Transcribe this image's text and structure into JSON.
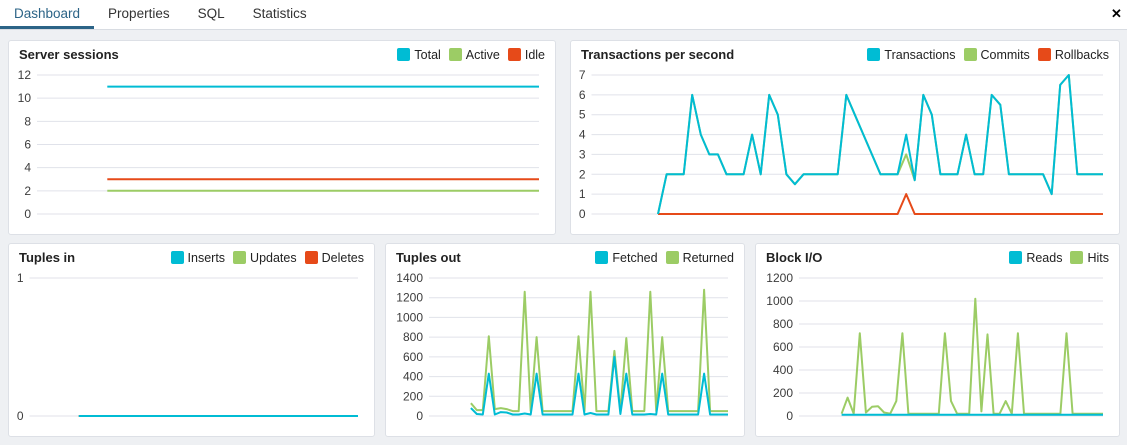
{
  "tabs": {
    "items": [
      {
        "label": "Dashboard",
        "active": true
      },
      {
        "label": "Properties",
        "active": false
      },
      {
        "label": "SQL",
        "active": false
      },
      {
        "label": "Statistics",
        "active": false
      }
    ],
    "close_label": "✕"
  },
  "colors": {
    "accent_tab": "#2c6487",
    "cyan": "#00BCD4",
    "green": "#9CCC65",
    "orange": "#E64A19",
    "gridline": "#e0e2ea"
  },
  "chart_data": [
    {
      "type": "line",
      "title": "Server sessions",
      "legend": [
        {
          "name": "Total",
          "color": "#00BCD4"
        },
        {
          "name": "Active",
          "color": "#9CCC65"
        },
        {
          "name": "Idle",
          "color": "#E64A19"
        }
      ],
      "yticks": [
        0,
        2,
        4,
        6,
        8,
        10,
        12
      ],
      "ylim": [
        0,
        12
      ],
      "grid": true,
      "legend_position": "top-right",
      "start_frac": 0.14,
      "series": [
        {
          "name": "Total",
          "color": "#00BCD4",
          "values": [
            11,
            11
          ]
        },
        {
          "name": "Active",
          "color": "#9CCC65",
          "values": [
            2,
            2
          ]
        },
        {
          "name": "Idle",
          "color": "#E64A19",
          "values": [
            3,
            3
          ]
        }
      ]
    },
    {
      "type": "line",
      "title": "Transactions per second",
      "legend": [
        {
          "name": "Transactions",
          "color": "#00BCD4"
        },
        {
          "name": "Commits",
          "color": "#9CCC65"
        },
        {
          "name": "Rollbacks",
          "color": "#E64A19"
        }
      ],
      "yticks": [
        0,
        1,
        2,
        3,
        4,
        5,
        6,
        7
      ],
      "ylim": [
        0,
        7
      ],
      "grid": true,
      "legend_position": "top-right",
      "start_frac": 0.13,
      "series": [
        {
          "name": "Commits",
          "color": "#9CCC65",
          "values": [
            0,
            2,
            2,
            2,
            6,
            4,
            3,
            3,
            2,
            2,
            2,
            4,
            2,
            6,
            5,
            2,
            1.5,
            2,
            2,
            2,
            2,
            2,
            6,
            5,
            4,
            3,
            2,
            2,
            2,
            3,
            1.7,
            6,
            5,
            2,
            2,
            2,
            4,
            2,
            2,
            6,
            5.5,
            2,
            2,
            2,
            2,
            2,
            1,
            6.5,
            7,
            2,
            2,
            2,
            2
          ]
        },
        {
          "name": "Rollbacks",
          "color": "#E64A19",
          "values": [
            0,
            0,
            0,
            0,
            0,
            0,
            0,
            0,
            0,
            0,
            0,
            0,
            0,
            0,
            0,
            0,
            0,
            0,
            0,
            0,
            0,
            0,
            0,
            0,
            0,
            0,
            0,
            0,
            0,
            1,
            0,
            0,
            0,
            0,
            0,
            0,
            0,
            0,
            0,
            0,
            0,
            0,
            0,
            0,
            0,
            0,
            0,
            0,
            0,
            0,
            0,
            0,
            0
          ]
        },
        {
          "name": "Transactions",
          "color": "#00BCD4",
          "values": [
            0,
            2,
            2,
            2,
            6,
            4,
            3,
            3,
            2,
            2,
            2,
            4,
            2,
            6,
            5,
            2,
            1.5,
            2,
            2,
            2,
            2,
            2,
            6,
            5,
            4,
            3,
            2,
            2,
            2,
            4,
            1.7,
            6,
            5,
            2,
            2,
            2,
            4,
            2,
            2,
            6,
            5.5,
            2,
            2,
            2,
            2,
            2,
            1,
            6.5,
            7,
            2,
            2,
            2,
            2
          ]
        }
      ]
    },
    {
      "type": "line",
      "title": "Tuples in",
      "legend": [
        {
          "name": "Inserts",
          "color": "#00BCD4"
        },
        {
          "name": "Updates",
          "color": "#9CCC65"
        },
        {
          "name": "Deletes",
          "color": "#E64A19"
        }
      ],
      "yticks": [
        0,
        1
      ],
      "ylim": [
        0,
        1
      ],
      "grid": true,
      "legend_position": "top-right",
      "start_frac": 0.15,
      "series": [
        {
          "name": "Updates",
          "color": "#9CCC65",
          "values": [
            0,
            0
          ]
        },
        {
          "name": "Deletes",
          "color": "#E64A19",
          "values": [
            0,
            0
          ]
        },
        {
          "name": "Inserts",
          "color": "#00BCD4",
          "values": [
            0,
            0
          ]
        }
      ]
    },
    {
      "type": "line",
      "title": "Tuples out",
      "legend": [
        {
          "name": "Fetched",
          "color": "#00BCD4"
        },
        {
          "name": "Returned",
          "color": "#9CCC65"
        }
      ],
      "yticks": [
        0,
        200,
        400,
        600,
        800,
        1000,
        1200,
        1400
      ],
      "ylim": [
        0,
        1400
      ],
      "grid": true,
      "legend_position": "top-right",
      "start_frac": 0.14,
      "series": [
        {
          "name": "Returned",
          "color": "#9CCC65",
          "values": [
            130,
            60,
            60,
            810,
            70,
            80,
            70,
            50,
            50,
            1260,
            50,
            800,
            50,
            50,
            50,
            50,
            50,
            50,
            810,
            50,
            1260,
            50,
            50,
            50,
            660,
            50,
            790,
            50,
            50,
            50,
            1260,
            50,
            800,
            50,
            50,
            50,
            50,
            50,
            50,
            1280,
            50,
            50,
            50,
            50
          ]
        },
        {
          "name": "Fetched",
          "color": "#00BCD4",
          "values": [
            80,
            20,
            15,
            430,
            15,
            40,
            35,
            15,
            15,
            25,
            15,
            430,
            15,
            15,
            15,
            15,
            15,
            15,
            430,
            15,
            30,
            15,
            15,
            15,
            600,
            20,
            430,
            15,
            15,
            15,
            20,
            15,
            430,
            15,
            15,
            15,
            15,
            15,
            15,
            430,
            15,
            15,
            15,
            15
          ]
        }
      ]
    },
    {
      "type": "line",
      "title": "Block I/O",
      "legend": [
        {
          "name": "Reads",
          "color": "#00BCD4"
        },
        {
          "name": "Hits",
          "color": "#9CCC65"
        }
      ],
      "yticks": [
        0,
        200,
        400,
        600,
        800,
        1000,
        1200
      ],
      "ylim": [
        0,
        1200
      ],
      "grid": true,
      "legend_position": "top-right",
      "start_frac": 0.14,
      "series": [
        {
          "name": "Hits",
          "color": "#9CCC65",
          "values": [
            20,
            160,
            20,
            720,
            30,
            80,
            85,
            30,
            20,
            130,
            720,
            20,
            20,
            20,
            20,
            20,
            20,
            720,
            130,
            20,
            20,
            20,
            1020,
            40,
            710,
            20,
            20,
            130,
            20,
            720,
            20,
            20,
            20,
            20,
            20,
            20,
            20,
            720,
            20,
            20,
            20,
            20,
            20,
            20
          ]
        },
        {
          "name": "Reads",
          "color": "#00BCD4",
          "values": [
            10,
            10
          ]
        }
      ]
    }
  ]
}
